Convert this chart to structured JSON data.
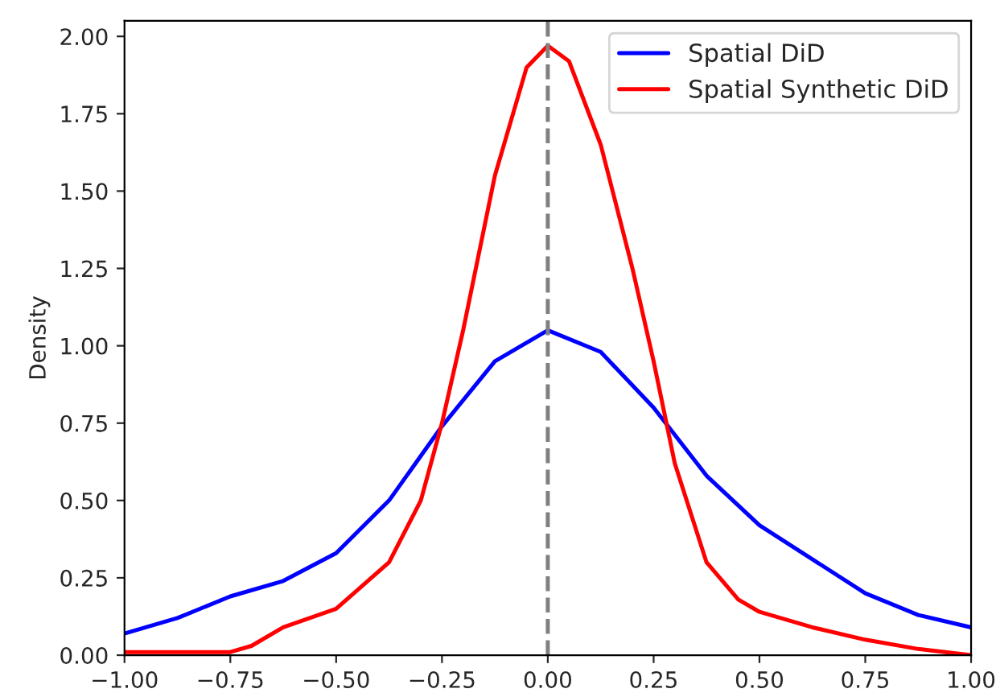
{
  "chart_data": {
    "type": "line",
    "ylabel": "Density",
    "xlim": [
      -1,
      1
    ],
    "ylim": [
      0,
      2.05
    ],
    "xticks": [
      {
        "value": -1,
        "label": "−1.00"
      },
      {
        "value": -0.75,
        "label": "−0.75"
      },
      {
        "value": -0.5,
        "label": "−0.50"
      },
      {
        "value": -0.25,
        "label": "−0.25"
      },
      {
        "value": 0,
        "label": "0.00"
      },
      {
        "value": 0.25,
        "label": "0.25"
      },
      {
        "value": 0.5,
        "label": "0.50"
      },
      {
        "value": 0.75,
        "label": "0.75"
      },
      {
        "value": 1,
        "label": "1.00"
      }
    ],
    "yticks": [
      {
        "value": 0,
        "label": "0.00"
      },
      {
        "value": 0.25,
        "label": "0.25"
      },
      {
        "value": 0.5,
        "label": "0.50"
      },
      {
        "value": 0.75,
        "label": "0.75"
      },
      {
        "value": 1,
        "label": "1.00"
      },
      {
        "value": 1.25,
        "label": "1.25"
      },
      {
        "value": 1.5,
        "label": "1.50"
      },
      {
        "value": 1.75,
        "label": "1.75"
      },
      {
        "value": 2,
        "label": "2.00"
      }
    ],
    "series": [
      {
        "name": "Spatial DiD",
        "color": "#0000ff",
        "x": [
          -1.0,
          -0.875,
          -0.75,
          -0.625,
          -0.5,
          -0.375,
          -0.25,
          -0.125,
          0,
          0.125,
          0.25,
          0.375,
          0.5,
          0.625,
          0.75,
          0.875,
          1.0
        ],
        "values": [
          0.07,
          0.12,
          0.19,
          0.24,
          0.33,
          0.5,
          0.74,
          0.95,
          1.05,
          0.98,
          0.8,
          0.58,
          0.42,
          0.31,
          0.2,
          0.13,
          0.09
        ]
      },
      {
        "name": "Spatial Synthetic DiD",
        "color": "#ff0000",
        "x": [
          -1.0,
          -0.875,
          -0.75,
          -0.7,
          -0.625,
          -0.5,
          -0.375,
          -0.3,
          -0.25,
          -0.2,
          -0.125,
          -0.05,
          0,
          0.05,
          0.125,
          0.2,
          0.25,
          0.3,
          0.375,
          0.45,
          0.5,
          0.625,
          0.75,
          0.875,
          1.0
        ],
        "values": [
          0.01,
          0.01,
          0.01,
          0.03,
          0.09,
          0.15,
          0.3,
          0.5,
          0.75,
          1.05,
          1.55,
          1.9,
          1.97,
          1.92,
          1.65,
          1.25,
          0.95,
          0.62,
          0.3,
          0.18,
          0.14,
          0.09,
          0.05,
          0.02,
          0.0
        ]
      }
    ],
    "ref_lines": [
      {
        "axis": "x",
        "value": 0,
        "color": "#808080",
        "line_style": "dashed"
      }
    ],
    "legend": "top right",
    "grid": false
  }
}
